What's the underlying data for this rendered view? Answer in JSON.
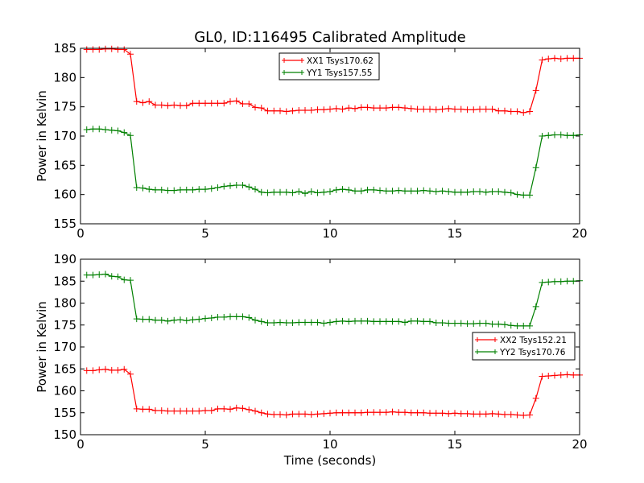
{
  "chart_data": [
    {
      "type": "line",
      "title": "GL0, ID:116495 Calibrated Amplitude",
      "xlabel": "",
      "ylabel": "Power in Kelvin",
      "xlim": [
        0,
        20
      ],
      "ylim": [
        155,
        185
      ],
      "xticks": [
        0,
        5,
        10,
        15,
        20
      ],
      "yticks": [
        155,
        160,
        165,
        170,
        175,
        180,
        185
      ],
      "grid": false,
      "legend_position": "top-center",
      "x": [
        0.25,
        0.5,
        0.75,
        1.0,
        1.25,
        1.5,
        1.75,
        2.0,
        2.25,
        2.5,
        2.75,
        3.0,
        3.25,
        3.5,
        3.75,
        4.0,
        4.25,
        4.5,
        4.75,
        5.0,
        5.25,
        5.5,
        5.75,
        6.0,
        6.25,
        6.5,
        6.75,
        7.0,
        7.25,
        7.5,
        7.75,
        8.0,
        8.25,
        8.5,
        8.75,
        9.0,
        9.25,
        9.5,
        9.75,
        10.0,
        10.25,
        10.5,
        10.75,
        11.0,
        11.25,
        11.5,
        11.75,
        12.0,
        12.25,
        12.5,
        12.75,
        13.0,
        13.25,
        13.5,
        13.75,
        14.0,
        14.25,
        14.5,
        14.75,
        15.0,
        15.25,
        15.5,
        15.75,
        16.0,
        16.25,
        16.5,
        16.75,
        17.0,
        17.25,
        17.5,
        17.75,
        18.0,
        18.25,
        18.5,
        18.75,
        19.0,
        19.25,
        19.5,
        19.75,
        20.0
      ],
      "series": [
        {
          "name": "XX1 Tsys170.62",
          "color": "#ff0000",
          "values": [
            184.8,
            184.8,
            184.8,
            184.9,
            184.9,
            184.8,
            184.8,
            184.0,
            175.9,
            175.7,
            175.9,
            175.3,
            175.3,
            175.2,
            175.3,
            175.2,
            175.2,
            175.6,
            175.6,
            175.6,
            175.6,
            175.6,
            175.6,
            175.9,
            176.0,
            175.5,
            175.5,
            174.9,
            174.8,
            174.3,
            174.3,
            174.3,
            174.2,
            174.3,
            174.4,
            174.4,
            174.4,
            174.5,
            174.5,
            174.6,
            174.7,
            174.6,
            174.8,
            174.7,
            174.9,
            174.9,
            174.8,
            174.8,
            174.8,
            174.9,
            174.9,
            174.8,
            174.7,
            174.6,
            174.6,
            174.6,
            174.5,
            174.6,
            174.7,
            174.6,
            174.6,
            174.5,
            174.5,
            174.6,
            174.6,
            174.6,
            174.3,
            174.3,
            174.2,
            174.2,
            174.0,
            174.2,
            177.8,
            183.0,
            183.2,
            183.3,
            183.2,
            183.3,
            183.3,
            183.3
          ]
        },
        {
          "name": "YY1 Tsys157.55",
          "color": "#008000",
          "values": [
            171.1,
            171.2,
            171.2,
            171.1,
            171.0,
            170.9,
            170.6,
            170.1,
            161.2,
            161.1,
            160.9,
            160.8,
            160.8,
            160.7,
            160.7,
            160.8,
            160.8,
            160.8,
            160.9,
            160.9,
            161.0,
            161.2,
            161.4,
            161.5,
            161.6,
            161.6,
            161.3,
            160.9,
            160.4,
            160.3,
            160.4,
            160.4,
            160.4,
            160.3,
            160.5,
            160.2,
            160.5,
            160.3,
            160.4,
            160.5,
            160.8,
            160.9,
            160.8,
            160.6,
            160.6,
            160.8,
            160.8,
            160.7,
            160.6,
            160.6,
            160.7,
            160.6,
            160.6,
            160.6,
            160.7,
            160.6,
            160.5,
            160.6,
            160.5,
            160.4,
            160.4,
            160.4,
            160.5,
            160.5,
            160.4,
            160.5,
            160.5,
            160.4,
            160.3,
            160.0,
            159.9,
            159.9,
            164.6,
            170.0,
            170.1,
            170.2,
            170.2,
            170.1,
            170.1,
            170.2
          ]
        }
      ]
    },
    {
      "type": "line",
      "title": "",
      "xlabel": "Time (seconds)",
      "ylabel": "Power in Kelvin",
      "xlim": [
        0,
        20
      ],
      "ylim": [
        150,
        190
      ],
      "xticks": [
        0,
        5,
        10,
        15,
        20
      ],
      "yticks": [
        150,
        155,
        160,
        165,
        170,
        175,
        180,
        185,
        190
      ],
      "grid": false,
      "legend_position": "center-right",
      "x": [
        0.25,
        0.5,
        0.75,
        1.0,
        1.25,
        1.5,
        1.75,
        2.0,
        2.25,
        2.5,
        2.75,
        3.0,
        3.25,
        3.5,
        3.75,
        4.0,
        4.25,
        4.5,
        4.75,
        5.0,
        5.25,
        5.5,
        5.75,
        6.0,
        6.25,
        6.5,
        6.75,
        7.0,
        7.25,
        7.5,
        7.75,
        8.0,
        8.25,
        8.5,
        8.75,
        9.0,
        9.25,
        9.5,
        9.75,
        10.0,
        10.25,
        10.5,
        10.75,
        11.0,
        11.25,
        11.5,
        11.75,
        12.0,
        12.25,
        12.5,
        12.75,
        13.0,
        13.25,
        13.5,
        13.75,
        14.0,
        14.25,
        14.5,
        14.75,
        15.0,
        15.25,
        15.5,
        15.75,
        16.0,
        16.25,
        16.5,
        16.75,
        17.0,
        17.25,
        17.5,
        17.75,
        18.0,
        18.25,
        18.5,
        18.75,
        19.0,
        19.25,
        19.5,
        19.75,
        20.0
      ],
      "series": [
        {
          "name": "XX2 Tsys152.21",
          "color": "#ff0000",
          "values": [
            164.6,
            164.6,
            164.8,
            164.9,
            164.7,
            164.7,
            164.9,
            163.8,
            155.9,
            155.8,
            155.8,
            155.5,
            155.5,
            155.4,
            155.4,
            155.4,
            155.4,
            155.4,
            155.4,
            155.5,
            155.5,
            155.9,
            155.9,
            155.8,
            156.1,
            156.0,
            155.7,
            155.4,
            155.0,
            154.7,
            154.6,
            154.6,
            154.5,
            154.7,
            154.7,
            154.7,
            154.6,
            154.7,
            154.8,
            154.9,
            155.0,
            155.0,
            155.0,
            155.0,
            155.0,
            155.1,
            155.1,
            155.1,
            155.1,
            155.2,
            155.1,
            155.1,
            155.0,
            155.0,
            155.0,
            154.9,
            154.9,
            154.9,
            154.8,
            154.9,
            154.8,
            154.8,
            154.7,
            154.7,
            154.7,
            154.8,
            154.7,
            154.6,
            154.6,
            154.5,
            154.4,
            154.5,
            158.3,
            163.3,
            163.4,
            163.5,
            163.6,
            163.7,
            163.6,
            163.6
          ]
        },
        {
          "name": "YY2 Tsys170.76",
          "color": "#008000",
          "values": [
            186.4,
            186.4,
            186.5,
            186.6,
            186.1,
            186.0,
            185.3,
            185.2,
            176.4,
            176.3,
            176.3,
            176.1,
            176.1,
            175.9,
            176.1,
            176.2,
            176.0,
            176.2,
            176.3,
            176.5,
            176.6,
            176.8,
            176.8,
            176.9,
            176.9,
            176.9,
            176.7,
            176.1,
            175.8,
            175.5,
            175.5,
            175.6,
            175.5,
            175.5,
            175.6,
            175.6,
            175.6,
            175.6,
            175.4,
            175.6,
            175.8,
            175.9,
            175.8,
            175.9,
            175.9,
            175.9,
            175.8,
            175.8,
            175.8,
            175.8,
            175.8,
            175.6,
            175.9,
            175.9,
            175.8,
            175.8,
            175.5,
            175.5,
            175.4,
            175.4,
            175.4,
            175.3,
            175.3,
            175.4,
            175.4,
            175.2,
            175.2,
            175.1,
            174.9,
            174.8,
            174.8,
            174.8,
            179.2,
            184.7,
            184.8,
            184.9,
            184.9,
            185.0,
            185.0,
            185.1
          ]
        }
      ]
    }
  ]
}
